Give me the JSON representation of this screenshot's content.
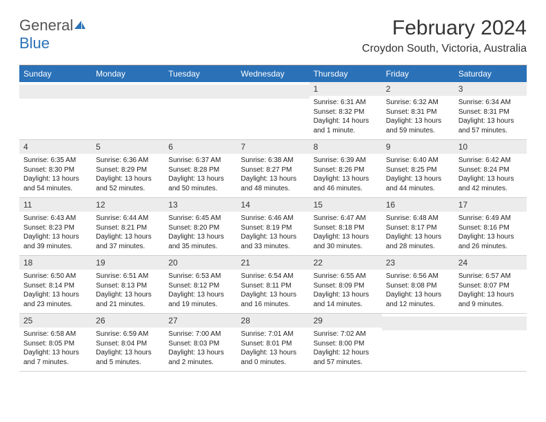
{
  "logo": {
    "text_general": "General",
    "text_blue": "Blue"
  },
  "title": "February 2024",
  "location": "Croydon South, Victoria, Australia",
  "colors": {
    "header_bg": "#2a71b8",
    "header_fg": "#ffffff",
    "daynum_bg": "#ececec",
    "text": "#222222",
    "rule": "#d0d0d0"
  },
  "typography": {
    "title_fontsize": 30,
    "location_fontsize": 16,
    "header_fontsize": 12,
    "daynum_fontsize": 12,
    "body_fontsize": 10
  },
  "day_headers": [
    "Sunday",
    "Monday",
    "Tuesday",
    "Wednesday",
    "Thursday",
    "Friday",
    "Saturday"
  ],
  "weeks": [
    [
      null,
      null,
      null,
      null,
      {
        "num": "1",
        "sunrise": "Sunrise: 6:31 AM",
        "sunset": "Sunset: 8:32 PM",
        "daylight": "Daylight: 14 hours and 1 minute."
      },
      {
        "num": "2",
        "sunrise": "Sunrise: 6:32 AM",
        "sunset": "Sunset: 8:31 PM",
        "daylight": "Daylight: 13 hours and 59 minutes."
      },
      {
        "num": "3",
        "sunrise": "Sunrise: 6:34 AM",
        "sunset": "Sunset: 8:31 PM",
        "daylight": "Daylight: 13 hours and 57 minutes."
      }
    ],
    [
      {
        "num": "4",
        "sunrise": "Sunrise: 6:35 AM",
        "sunset": "Sunset: 8:30 PM",
        "daylight": "Daylight: 13 hours and 54 minutes."
      },
      {
        "num": "5",
        "sunrise": "Sunrise: 6:36 AM",
        "sunset": "Sunset: 8:29 PM",
        "daylight": "Daylight: 13 hours and 52 minutes."
      },
      {
        "num": "6",
        "sunrise": "Sunrise: 6:37 AM",
        "sunset": "Sunset: 8:28 PM",
        "daylight": "Daylight: 13 hours and 50 minutes."
      },
      {
        "num": "7",
        "sunrise": "Sunrise: 6:38 AM",
        "sunset": "Sunset: 8:27 PM",
        "daylight": "Daylight: 13 hours and 48 minutes."
      },
      {
        "num": "8",
        "sunrise": "Sunrise: 6:39 AM",
        "sunset": "Sunset: 8:26 PM",
        "daylight": "Daylight: 13 hours and 46 minutes."
      },
      {
        "num": "9",
        "sunrise": "Sunrise: 6:40 AM",
        "sunset": "Sunset: 8:25 PM",
        "daylight": "Daylight: 13 hours and 44 minutes."
      },
      {
        "num": "10",
        "sunrise": "Sunrise: 6:42 AM",
        "sunset": "Sunset: 8:24 PM",
        "daylight": "Daylight: 13 hours and 42 minutes."
      }
    ],
    [
      {
        "num": "11",
        "sunrise": "Sunrise: 6:43 AM",
        "sunset": "Sunset: 8:23 PM",
        "daylight": "Daylight: 13 hours and 39 minutes."
      },
      {
        "num": "12",
        "sunrise": "Sunrise: 6:44 AM",
        "sunset": "Sunset: 8:21 PM",
        "daylight": "Daylight: 13 hours and 37 minutes."
      },
      {
        "num": "13",
        "sunrise": "Sunrise: 6:45 AM",
        "sunset": "Sunset: 8:20 PM",
        "daylight": "Daylight: 13 hours and 35 minutes."
      },
      {
        "num": "14",
        "sunrise": "Sunrise: 6:46 AM",
        "sunset": "Sunset: 8:19 PM",
        "daylight": "Daylight: 13 hours and 33 minutes."
      },
      {
        "num": "15",
        "sunrise": "Sunrise: 6:47 AM",
        "sunset": "Sunset: 8:18 PM",
        "daylight": "Daylight: 13 hours and 30 minutes."
      },
      {
        "num": "16",
        "sunrise": "Sunrise: 6:48 AM",
        "sunset": "Sunset: 8:17 PM",
        "daylight": "Daylight: 13 hours and 28 minutes."
      },
      {
        "num": "17",
        "sunrise": "Sunrise: 6:49 AM",
        "sunset": "Sunset: 8:16 PM",
        "daylight": "Daylight: 13 hours and 26 minutes."
      }
    ],
    [
      {
        "num": "18",
        "sunrise": "Sunrise: 6:50 AM",
        "sunset": "Sunset: 8:14 PM",
        "daylight": "Daylight: 13 hours and 23 minutes."
      },
      {
        "num": "19",
        "sunrise": "Sunrise: 6:51 AM",
        "sunset": "Sunset: 8:13 PM",
        "daylight": "Daylight: 13 hours and 21 minutes."
      },
      {
        "num": "20",
        "sunrise": "Sunrise: 6:53 AM",
        "sunset": "Sunset: 8:12 PM",
        "daylight": "Daylight: 13 hours and 19 minutes."
      },
      {
        "num": "21",
        "sunrise": "Sunrise: 6:54 AM",
        "sunset": "Sunset: 8:11 PM",
        "daylight": "Daylight: 13 hours and 16 minutes."
      },
      {
        "num": "22",
        "sunrise": "Sunrise: 6:55 AM",
        "sunset": "Sunset: 8:09 PM",
        "daylight": "Daylight: 13 hours and 14 minutes."
      },
      {
        "num": "23",
        "sunrise": "Sunrise: 6:56 AM",
        "sunset": "Sunset: 8:08 PM",
        "daylight": "Daylight: 13 hours and 12 minutes."
      },
      {
        "num": "24",
        "sunrise": "Sunrise: 6:57 AM",
        "sunset": "Sunset: 8:07 PM",
        "daylight": "Daylight: 13 hours and 9 minutes."
      }
    ],
    [
      {
        "num": "25",
        "sunrise": "Sunrise: 6:58 AM",
        "sunset": "Sunset: 8:05 PM",
        "daylight": "Daylight: 13 hours and 7 minutes."
      },
      {
        "num": "26",
        "sunrise": "Sunrise: 6:59 AM",
        "sunset": "Sunset: 8:04 PM",
        "daylight": "Daylight: 13 hours and 5 minutes."
      },
      {
        "num": "27",
        "sunrise": "Sunrise: 7:00 AM",
        "sunset": "Sunset: 8:03 PM",
        "daylight": "Daylight: 13 hours and 2 minutes."
      },
      {
        "num": "28",
        "sunrise": "Sunrise: 7:01 AM",
        "sunset": "Sunset: 8:01 PM",
        "daylight": "Daylight: 13 hours and 0 minutes."
      },
      {
        "num": "29",
        "sunrise": "Sunrise: 7:02 AM",
        "sunset": "Sunset: 8:00 PM",
        "daylight": "Daylight: 12 hours and 57 minutes."
      },
      null,
      null
    ]
  ]
}
